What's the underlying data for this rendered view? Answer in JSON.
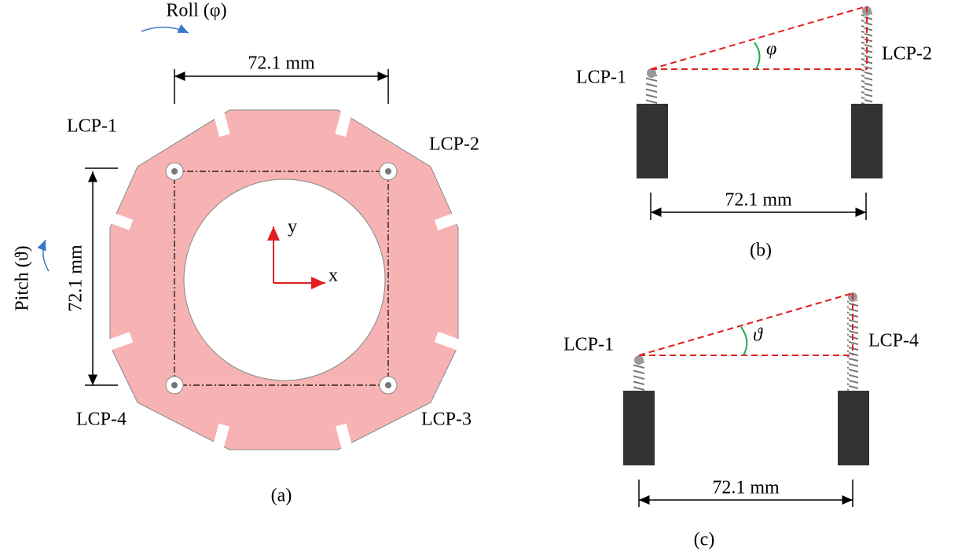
{
  "panels": {
    "a": {
      "roll_label": "Roll (φ)",
      "width_label": "72.1 mm",
      "pitch_label": "Pitch (ϑ)",
      "height_label": "72.1 mm",
      "lcp_labels": [
        "LCP-1",
        "LCP-2",
        "LCP-3",
        "LCP-4"
      ],
      "axis_y": "y",
      "axis_x": "x",
      "caption": "(a)"
    },
    "b": {
      "left_label": "LCP-1",
      "right_label": "LCP-2",
      "angle_label": "φ",
      "distance_label": "72.1 mm",
      "caption": "(b)"
    },
    "c": {
      "left_label": "LCP-1",
      "right_label": "LCP-4",
      "angle_label": "ϑ",
      "distance_label": "72.1 mm",
      "caption": "(c)"
    }
  }
}
